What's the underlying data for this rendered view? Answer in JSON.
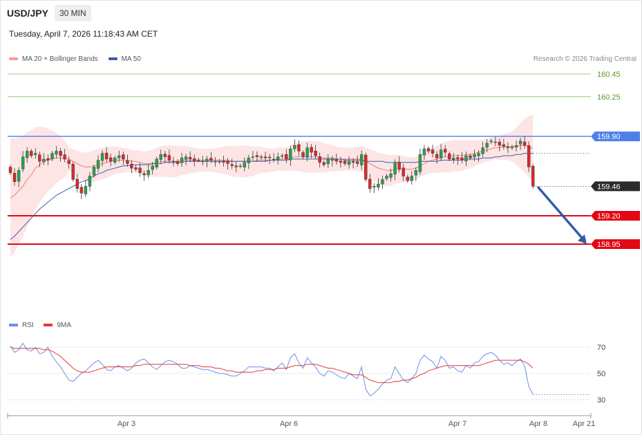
{
  "header": {
    "symbol": "USD/JPY",
    "timeframe": "30 MIN",
    "datetime": "Tuesday, April 7, 2026 11:18:43 AM CET",
    "credit": "Research © 2026 Trading Central"
  },
  "legend": {
    "ma20_label": "MA 20 + Bollinger Bands",
    "ma50_label": "MA 50",
    "rsi_label": "RSI",
    "rsi_ma_label": "9MA"
  },
  "colors": {
    "bull": "#2e9e4f",
    "bear": "#d62b2b",
    "ma20": "#f07b7b",
    "ma50": "#3a5ea8",
    "band_fill": "#fde0e0",
    "green_level": "#7cbf5a",
    "blue_level": "#4f7fe8",
    "red_level": "#e30613",
    "arrow": "#2f5ea7",
    "rsi": "#6a8fe6",
    "rsi_ma": "#e53935",
    "price_tag": "#2b2b2b"
  },
  "chart_data": [
    {
      "type": "line",
      "name": "price-panel",
      "ylim": [
        158.84,
        160.56
      ],
      "levels": [
        {
          "value": 160.45,
          "label": "160.45",
          "kind": "target",
          "color": "green"
        },
        {
          "value": 160.25,
          "label": "160.25",
          "kind": "target",
          "color": "green"
        },
        {
          "value": 159.9,
          "label": "159.90",
          "kind": "pivot",
          "color": "blue"
        },
        {
          "value": 159.2,
          "label": "159.20",
          "kind": "support",
          "color": "red"
        },
        {
          "value": 158.95,
          "label": "158.95",
          "kind": "support",
          "color": "red"
        }
      ],
      "last_price": {
        "value": 159.46,
        "label": "159.46"
      },
      "x_ticks": [
        "Apr 3",
        "Apr 6",
        "Apr 7",
        "Apr 8",
        "Apr 21"
      ],
      "candles_close": [
        159.58,
        159.5,
        159.6,
        159.72,
        159.77,
        159.73,
        159.75,
        159.68,
        159.7,
        159.69,
        159.75,
        159.77,
        159.73,
        159.7,
        159.66,
        159.52,
        159.44,
        159.4,
        159.46,
        159.55,
        159.63,
        159.69,
        159.75,
        159.7,
        159.68,
        159.71,
        159.73,
        159.7,
        159.66,
        159.62,
        159.61,
        159.58,
        159.56,
        159.6,
        159.64,
        159.7,
        159.74,
        159.72,
        159.69,
        159.68,
        159.66,
        159.71,
        159.72,
        159.7,
        159.68,
        159.69,
        159.68,
        159.7,
        159.69,
        159.68,
        159.68,
        159.67,
        159.66,
        159.64,
        159.63,
        159.64,
        159.67,
        159.71,
        159.72,
        159.72,
        159.72,
        159.71,
        159.71,
        159.7,
        159.72,
        159.73,
        159.7,
        159.79,
        159.82,
        159.77,
        159.72,
        159.8,
        159.76,
        159.73,
        159.67,
        159.65,
        159.7,
        159.7,
        159.68,
        159.67,
        159.66,
        159.68,
        159.67,
        159.66,
        159.74,
        159.52,
        159.44,
        159.46,
        159.48,
        159.52,
        159.55,
        159.57,
        159.67,
        159.61,
        159.55,
        159.51,
        159.55,
        159.6,
        159.74,
        159.79,
        159.77,
        159.75,
        159.71,
        159.78,
        159.76,
        159.7,
        159.71,
        159.7,
        159.69,
        159.73,
        159.71,
        159.74,
        159.75,
        159.8,
        159.84,
        159.86,
        159.85,
        159.82,
        159.81,
        159.81,
        159.8,
        159.82,
        159.86,
        159.82,
        159.63,
        159.46
      ],
      "ma20": [
        159.36,
        159.38,
        159.42,
        159.46,
        159.52,
        159.56,
        159.62,
        159.65,
        159.68,
        159.69,
        159.7,
        159.71,
        159.71,
        159.7,
        159.7,
        159.68,
        159.66,
        159.64,
        159.63,
        159.63,
        159.64,
        159.65,
        159.66,
        159.67,
        159.68,
        159.69,
        159.69,
        159.69,
        159.69,
        159.68,
        159.68,
        159.67,
        159.66,
        159.66,
        159.66,
        159.67,
        159.68,
        159.68,
        159.68,
        159.68,
        159.68,
        159.69,
        159.69,
        159.69,
        159.69,
        159.69,
        159.69,
        159.69,
        159.69,
        159.69,
        159.69,
        159.69,
        159.69,
        159.68,
        159.68,
        159.68,
        159.68,
        159.68,
        159.68,
        159.69,
        159.69,
        159.69,
        159.69,
        159.69,
        159.7,
        159.7,
        159.7,
        159.71,
        159.72,
        159.72,
        159.72,
        159.72,
        159.72,
        159.72,
        159.72,
        159.71,
        159.71,
        159.71,
        159.7,
        159.7,
        159.7,
        159.7,
        159.7,
        159.7,
        159.7,
        159.68,
        159.66,
        159.64,
        159.62,
        159.61,
        159.6,
        159.6,
        159.61,
        159.61,
        159.61,
        159.61,
        159.61,
        159.62,
        159.64,
        159.66,
        159.68,
        159.69,
        159.7,
        159.71,
        159.72,
        159.72,
        159.73,
        159.73,
        159.73,
        159.74,
        159.74,
        159.75,
        159.76,
        159.77,
        159.78,
        159.79,
        159.8,
        159.8,
        159.81,
        159.81,
        159.81,
        159.81,
        159.82,
        159.82,
        159.81,
        159.79
      ],
      "ma50": [
        158.99,
        159.02,
        159.06,
        159.1,
        159.14,
        159.18,
        159.22,
        159.26,
        159.29,
        159.32,
        159.35,
        159.38,
        159.4,
        159.42,
        159.44,
        159.46,
        159.48,
        159.5,
        159.51,
        159.53,
        159.55,
        159.57,
        159.58,
        159.6,
        159.61,
        159.62,
        159.63,
        159.64,
        159.64,
        159.65,
        159.65,
        159.65,
        159.65,
        159.65,
        159.66,
        159.66,
        159.66,
        159.67,
        159.67,
        159.67,
        159.67,
        159.67,
        159.68,
        159.68,
        159.68,
        159.68,
        159.68,
        159.68,
        159.68,
        159.68,
        159.68,
        159.68,
        159.68,
        159.68,
        159.68,
        159.68,
        159.68,
        159.68,
        159.68,
        159.68,
        159.68,
        159.68,
        159.69,
        159.69,
        159.69,
        159.69,
        159.69,
        159.7,
        159.7,
        159.7,
        159.7,
        159.7,
        159.7,
        159.7,
        159.7,
        159.7,
        159.7,
        159.7,
        159.7,
        159.7,
        159.69,
        159.69,
        159.69,
        159.69,
        159.69,
        159.68,
        159.68,
        159.68,
        159.68,
        159.68,
        159.67,
        159.67,
        159.67,
        159.67,
        159.67,
        159.67,
        159.67,
        159.67,
        159.68,
        159.68,
        159.68,
        159.68,
        159.68,
        159.69,
        159.69,
        159.69,
        159.69,
        159.69,
        159.69,
        159.7,
        159.7,
        159.7,
        159.7,
        159.71,
        159.71,
        159.71,
        159.72,
        159.72,
        159.73,
        159.73,
        159.73,
        159.74,
        159.74,
        159.75,
        159.75,
        159.75
      ]
    },
    {
      "type": "line",
      "name": "rsi-panel",
      "ylim": [
        25,
        78
      ],
      "levels": [
        {
          "value": 70,
          "label": "70"
        },
        {
          "value": 50,
          "label": "50"
        },
        {
          "value": 30,
          "label": "30"
        }
      ],
      "series": [
        {
          "name": "RSI",
          "values": [
            71,
            66,
            68,
            73,
            68,
            67,
            70,
            65,
            66,
            70,
            63,
            59,
            55,
            50,
            45,
            44,
            47,
            50,
            52,
            55,
            58,
            60,
            57,
            53,
            52,
            55,
            56,
            54,
            52,
            54,
            58,
            60,
            61,
            58,
            55,
            53,
            56,
            59,
            60,
            59,
            57,
            54,
            54,
            56,
            55,
            54,
            53,
            53,
            52,
            51,
            50,
            50,
            49,
            48,
            48,
            50,
            52,
            55,
            55,
            55,
            55,
            54,
            54,
            52,
            55,
            58,
            53,
            62,
            65,
            58,
            54,
            62,
            58,
            55,
            50,
            48,
            52,
            51,
            49,
            47,
            46,
            50,
            48,
            46,
            55,
            38,
            33,
            35,
            38,
            42,
            45,
            46,
            55,
            50,
            45,
            43,
            46,
            50,
            60,
            64,
            61,
            59,
            54,
            63,
            60,
            54,
            55,
            52,
            51,
            56,
            54,
            58,
            59,
            63,
            65,
            66,
            64,
            60,
            57,
            58,
            56,
            59,
            61,
            56,
            40,
            34
          ]
        },
        {
          "name": "9MA",
          "values": [
            70,
            69,
            69,
            69,
            69,
            69,
            69,
            69,
            68,
            68,
            67,
            65,
            63,
            60,
            57,
            54,
            52,
            51,
            51,
            51,
            52,
            53,
            54,
            55,
            55,
            55,
            55,
            55,
            55,
            55,
            56,
            56,
            57,
            57,
            57,
            57,
            57,
            57,
            57,
            57,
            57,
            57,
            57,
            56,
            56,
            56,
            55,
            55,
            55,
            54,
            54,
            53,
            52,
            52,
            51,
            51,
            51,
            51,
            51,
            52,
            52,
            53,
            53,
            53,
            54,
            54,
            54,
            55,
            56,
            56,
            56,
            57,
            57,
            57,
            56,
            55,
            54,
            54,
            53,
            52,
            51,
            50,
            49,
            49,
            49,
            47,
            45,
            44,
            43,
            43,
            43,
            43,
            44,
            44,
            45,
            45,
            46,
            47,
            49,
            50,
            52,
            53,
            54,
            55,
            56,
            56,
            56,
            56,
            56,
            56,
            56,
            56,
            56,
            57,
            58,
            59,
            60,
            60,
            60,
            60,
            60,
            60,
            60,
            59,
            57,
            54
          ]
        }
      ]
    }
  ]
}
